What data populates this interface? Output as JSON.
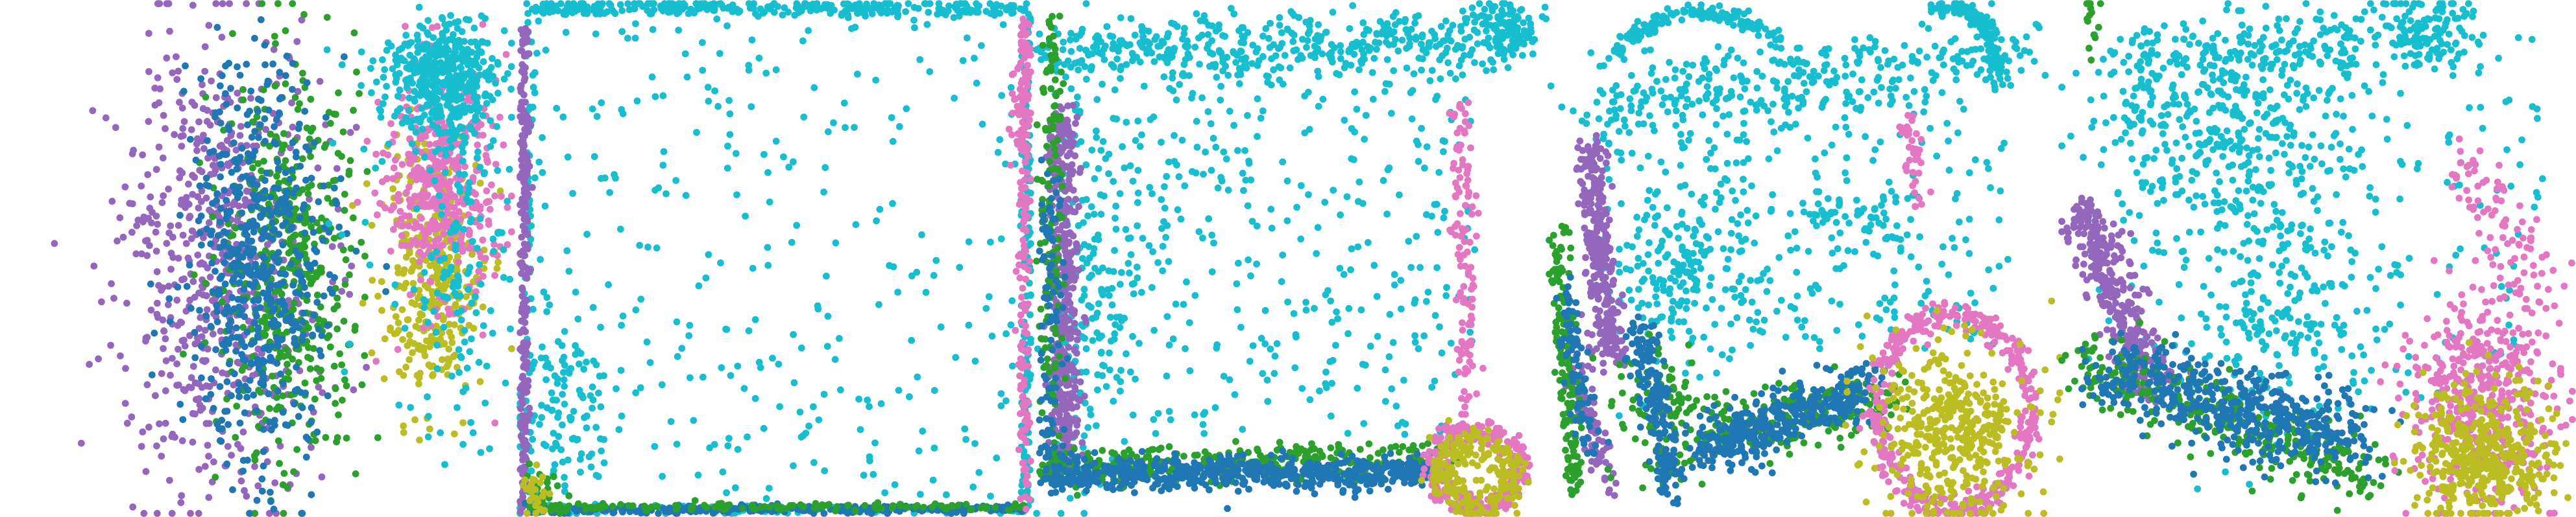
{
  "figure": {
    "title": "",
    "colors": {
      "blue": "#1f77b4",
      "green": "#2ca02c",
      "purple": "#9467bd",
      "pink": "#e377c2",
      "olive": "#bcbd22",
      "cyan": "#17becf"
    }
  },
  "chart_data": [
    {
      "type": "scatter",
      "title": "",
      "axes_visible": false,
      "grid": false,
      "xlim": [
        0,
        1
      ],
      "ylim": [
        0,
        1
      ],
      "series": [
        {
          "color_key": "purple",
          "clusters": [
            {
              "kind": "blob",
              "cx": 0.42,
              "cy": 0.5,
              "sx": 0.1,
              "sy": 0.22,
              "n": 650
            }
          ]
        },
        {
          "color_key": "green",
          "clusters": [
            {
              "kind": "blob",
              "cx": 0.56,
              "cy": 0.52,
              "sx": 0.07,
              "sy": 0.19,
              "n": 480
            }
          ]
        },
        {
          "color_key": "blue",
          "clusters": [
            {
              "kind": "blob",
              "cx": 0.5,
              "cy": 0.5,
              "sx": 0.07,
              "sy": 0.19,
              "n": 550
            }
          ]
        },
        {
          "color_key": "olive",
          "clusters": [
            {
              "kind": "blob",
              "cx": 0.84,
              "cy": 0.52,
              "sx": 0.05,
              "sy": 0.13,
              "n": 380
            }
          ]
        },
        {
          "color_key": "pink",
          "clusters": [
            {
              "kind": "blob",
              "cx": 0.86,
              "cy": 0.35,
              "sx": 0.055,
              "sy": 0.11,
              "n": 430
            }
          ]
        },
        {
          "color_key": "cyan",
          "clusters": [
            {
              "kind": "blob",
              "cx": 0.86,
              "cy": 0.15,
              "sx": 0.05,
              "sy": 0.055,
              "n": 420
            },
            {
              "kind": "blob",
              "cx": 0.9,
              "cy": 0.52,
              "sx": 0.045,
              "sy": 0.17,
              "n": 130
            },
            {
              "kind": "uniform",
              "x": [
                0.62,
                1.0
              ],
              "y": [
                0.0,
                0.8
              ],
              "n": 50
            }
          ]
        }
      ]
    },
    {
      "type": "scatter",
      "title": "",
      "axes_visible": false,
      "grid": false,
      "xlim": [
        0,
        1
      ],
      "ylim": [
        0,
        1
      ],
      "series": [
        {
          "color_key": "cyan",
          "clusters": [
            {
              "kind": "line",
              "from": [
                0.02,
                0.01
              ],
              "to": [
                0.99,
                0.01
              ],
              "jitter": 0.008,
              "n": 320
            },
            {
              "kind": "line",
              "from": [
                0.99,
                0.01
              ],
              "to": [
                0.99,
                0.99
              ],
              "jitter": 0.006,
              "n": 160
            },
            {
              "kind": "line",
              "from": [
                0.02,
                0.01
              ],
              "to": [
                0.02,
                0.99
              ],
              "jitter": 0.006,
              "n": 60
            },
            {
              "kind": "line",
              "from": [
                0.02,
                0.99
              ],
              "to": [
                0.99,
                0.99
              ],
              "jitter": 0.004,
              "n": 100
            },
            {
              "kind": "uniform",
              "x": [
                0.03,
                0.97
              ],
              "y": [
                0.03,
                0.97
              ],
              "n": 280
            },
            {
              "kind": "blob",
              "cx": 0.08,
              "cy": 0.8,
              "sx": 0.05,
              "sy": 0.1,
              "n": 120
            }
          ]
        },
        {
          "color_key": "purple",
          "clusters": [
            {
              "kind": "line",
              "from": [
                0.01,
                0.05
              ],
              "to": [
                0.01,
                0.99
              ],
              "jitter": 0.005,
              "n": 260
            }
          ]
        },
        {
          "color_key": "blue",
          "clusters": [
            {
              "kind": "line",
              "from": [
                0.02,
                0.99
              ],
              "to": [
                0.99,
                0.99
              ],
              "jitter": 0.004,
              "n": 300
            }
          ]
        },
        {
          "color_key": "green",
          "clusters": [
            {
              "kind": "line",
              "from": [
                0.02,
                0.985
              ],
              "to": [
                0.99,
                0.985
              ],
              "jitter": 0.004,
              "n": 130
            },
            {
              "kind": "blob",
              "cx": 0.05,
              "cy": 0.95,
              "sx": 0.02,
              "sy": 0.03,
              "n": 25
            }
          ]
        },
        {
          "color_key": "pink",
          "clusters": [
            {
              "kind": "line",
              "from": [
                0.985,
                0.03
              ],
              "to": [
                0.985,
                0.99
              ],
              "jitter": 0.006,
              "n": 160
            },
            {
              "kind": "blob",
              "cx": 0.98,
              "cy": 0.18,
              "sx": 0.01,
              "sy": 0.06,
              "n": 50
            }
          ]
        },
        {
          "color_key": "olive",
          "clusters": [
            {
              "kind": "blob",
              "cx": 0.03,
              "cy": 0.96,
              "sx": 0.012,
              "sy": 0.025,
              "n": 25
            }
          ]
        }
      ]
    },
    {
      "type": "scatter",
      "title": "",
      "axes_visible": false,
      "grid": false,
      "xlim": [
        0,
        1
      ],
      "ylim": [
        0,
        1
      ],
      "series": [
        {
          "color_key": "cyan",
          "clusters": [
            {
              "kind": "line",
              "from": [
                0.03,
                0.1
              ],
              "to": [
                0.93,
                0.07
              ],
              "jitter": 0.03,
              "n": 440
            },
            {
              "kind": "blob",
              "cx": 0.91,
              "cy": 0.04,
              "sx": 0.03,
              "sy": 0.03,
              "n": 100
            },
            {
              "kind": "uniform",
              "x": [
                0.06,
                0.86
              ],
              "y": [
                0.12,
                0.85
              ],
              "n": 380
            },
            {
              "kind": "blob",
              "cx": 0.12,
              "cy": 0.6,
              "sx": 0.05,
              "sy": 0.2,
              "n": 140
            }
          ]
        },
        {
          "color_key": "purple",
          "clusters": [
            {
              "kind": "line",
              "from": [
                0.05,
                0.22
              ],
              "to": [
                0.06,
                0.9
              ],
              "jitter": 0.015,
              "n": 460
            }
          ]
        },
        {
          "color_key": "green",
          "clusters": [
            {
              "kind": "line",
              "from": [
                0.03,
                0.03
              ],
              "to": [
                0.03,
                0.94
              ],
              "jitter": 0.012,
              "n": 160
            },
            {
              "kind": "line",
              "from": [
                0.03,
                0.91
              ],
              "to": [
                0.8,
                0.89
              ],
              "jitter": 0.018,
              "n": 340
            }
          ]
        },
        {
          "color_key": "blue",
          "clusters": [
            {
              "kind": "line",
              "from": [
                0.04,
                0.92
              ],
              "to": [
                0.77,
                0.92
              ],
              "jitter": 0.016,
              "n": 560
            },
            {
              "kind": "line",
              "from": [
                0.03,
                0.3
              ],
              "to": [
                0.03,
                0.95
              ],
              "jitter": 0.012,
              "n": 100
            }
          ]
        },
        {
          "color_key": "pink",
          "clusters": [
            {
              "kind": "ring",
              "cx": 0.86,
              "cy": 0.91,
              "rx": 0.08,
              "ry": 0.075,
              "jitter": 0.012,
              "n": 300
            },
            {
              "kind": "line",
              "from": [
                0.83,
                0.2
              ],
              "to": [
                0.84,
                0.8
              ],
              "jitter": 0.012,
              "n": 120
            }
          ]
        },
        {
          "color_key": "olive",
          "clusters": [
            {
              "kind": "ring",
              "cx": 0.86,
              "cy": 0.92,
              "rx": 0.065,
              "ry": 0.06,
              "jitter": 0.018,
              "n": 230
            }
          ]
        }
      ]
    },
    {
      "type": "scatter",
      "title": "",
      "axes_visible": false,
      "grid": false,
      "xlim": [
        0,
        1
      ],
      "ylim": [
        0,
        1
      ],
      "series": [
        {
          "color_key": "cyan",
          "clusters": [
            {
              "kind": "arc",
              "cx": 0.3,
              "cy": 0.15,
              "rx": 0.18,
              "ry": 0.13,
              "start": 200,
              "end": 330,
              "jitter": 0.008,
              "n": 140
            },
            {
              "kind": "arc",
              "cx": 0.78,
              "cy": 0.14,
              "rx": 0.1,
              "ry": 0.13,
              "start": 250,
              "end": 360,
              "jitter": 0.008,
              "n": 110
            },
            {
              "kind": "line",
              "from": [
                0.07,
                0.2
              ],
              "to": [
                0.95,
                0.1
              ],
              "jitter": 0.04,
              "n": 260
            },
            {
              "kind": "uniform",
              "x": [
                0.1,
                0.9
              ],
              "y": [
                0.08,
                0.68
              ],
              "n": 380
            },
            {
              "kind": "blob",
              "cx": 0.28,
              "cy": 0.52,
              "sx": 0.06,
              "sy": 0.09,
              "n": 150
            },
            {
              "kind": "line",
              "from": [
                0.5,
                0.4
              ],
              "to": [
                0.68,
                0.43
              ],
              "jitter": 0.02,
              "n": 50
            }
          ]
        },
        {
          "color_key": "purple",
          "clusters": [
            {
              "kind": "line",
              "from": [
                0.08,
                0.28
              ],
              "to": [
                0.12,
                0.7
              ],
              "jitter": 0.015,
              "n": 320
            },
            {
              "kind": "line",
              "from": [
                0.05,
                0.7
              ],
              "to": [
                0.12,
                0.95
              ],
              "jitter": 0.012,
              "n": 80
            }
          ]
        },
        {
          "color_key": "green",
          "clusters": [
            {
              "kind": "line",
              "from": [
                0.02,
                0.45
              ],
              "to": [
                0.05,
                0.95
              ],
              "jitter": 0.012,
              "n": 160
            },
            {
              "kind": "line",
              "from": [
                0.3,
                0.85
              ],
              "to": [
                0.65,
                0.78
              ],
              "jitter": 0.03,
              "n": 230
            },
            {
              "kind": "blob",
              "cx": 0.22,
              "cy": 0.8,
              "sx": 0.04,
              "sy": 0.07,
              "n": 100
            }
          ]
        },
        {
          "color_key": "blue",
          "clusters": [
            {
              "kind": "line",
              "from": [
                0.3,
                0.88
              ],
              "to": [
                0.62,
                0.75
              ],
              "jitter": 0.028,
              "n": 360
            },
            {
              "kind": "line",
              "from": [
                0.18,
                0.62
              ],
              "to": [
                0.24,
                0.96
              ],
              "jitter": 0.015,
              "n": 180
            },
            {
              "kind": "line",
              "from": [
                0.03,
                0.55
              ],
              "to": [
                0.08,
                0.88
              ],
              "jitter": 0.012,
              "n": 80
            }
          ]
        },
        {
          "color_key": "pink",
          "clusters": [
            {
              "kind": "ring",
              "cx": 0.79,
              "cy": 0.8,
              "rx": 0.15,
              "ry": 0.19,
              "jitter": 0.012,
              "n": 420
            },
            {
              "kind": "line",
              "from": [
                0.7,
                0.22
              ],
              "to": [
                0.72,
                0.4
              ],
              "jitter": 0.01,
              "n": 40
            }
          ]
        },
        {
          "color_key": "olive",
          "clusters": [
            {
              "kind": "blob",
              "cx": 0.79,
              "cy": 0.84,
              "sx": 0.075,
              "sy": 0.085,
              "n": 420
            }
          ]
        }
      ]
    },
    {
      "type": "scatter",
      "title": "",
      "axes_visible": false,
      "grid": false,
      "xlim": [
        0,
        1
      ],
      "ylim": [
        0,
        1
      ],
      "series": [
        {
          "color_key": "cyan",
          "clusters": [
            {
              "kind": "line",
              "from": [
                0.08,
                0.14
              ],
              "to": [
                0.76,
                0.05
              ],
              "jitter": 0.04,
              "n": 240
            },
            {
              "kind": "blob",
              "cx": 0.73,
              "cy": 0.06,
              "sx": 0.05,
              "sy": 0.035,
              "n": 90
            },
            {
              "kind": "blob",
              "cx": 0.3,
              "cy": 0.25,
              "sx": 0.13,
              "sy": 0.1,
              "n": 300
            },
            {
              "kind": "blob",
              "cx": 0.43,
              "cy": 0.55,
              "sx": 0.11,
              "sy": 0.14,
              "n": 260
            },
            {
              "kind": "uniform",
              "x": [
                0.05,
                0.95
              ],
              "y": [
                0.05,
                0.8
              ],
              "n": 180
            }
          ]
        },
        {
          "color_key": "purple",
          "clusters": [
            {
              "kind": "line",
              "from": [
                0.04,
                0.4
              ],
              "to": [
                0.18,
                0.76
              ],
              "jitter": 0.025,
              "n": 320
            }
          ]
        },
        {
          "color_key": "green",
          "clusters": [
            {
              "kind": "line",
              "from": [
                0.03,
                0.7
              ],
              "to": [
                0.62,
                0.93
              ],
              "jitter": 0.035,
              "n": 320
            },
            {
              "kind": "blob",
              "cx": 0.06,
              "cy": 0.04,
              "sx": 0.01,
              "sy": 0.03,
              "n": 15
            }
          ]
        },
        {
          "color_key": "blue",
          "clusters": [
            {
              "kind": "line",
              "from": [
                0.1,
                0.72
              ],
              "to": [
                0.58,
                0.86
              ],
              "jitter": 0.04,
              "n": 480
            }
          ]
        },
        {
          "color_key": "pink",
          "clusters": [
            {
              "kind": "blob",
              "cx": 0.82,
              "cy": 0.78,
              "sx": 0.07,
              "sy": 0.1,
              "n": 480
            },
            {
              "kind": "line",
              "from": [
                0.8,
                0.3
              ],
              "to": [
                0.94,
                0.6
              ],
              "jitter": 0.03,
              "n": 90
            }
          ]
        },
        {
          "color_key": "olive",
          "clusters": [
            {
              "kind": "blob",
              "cx": 0.82,
              "cy": 0.88,
              "sx": 0.07,
              "sy": 0.065,
              "n": 420
            }
          ]
        }
      ]
    }
  ]
}
